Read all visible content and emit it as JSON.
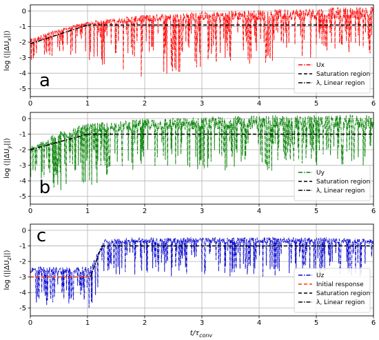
{
  "figure": {
    "xlabel": "t/τ",
    "xlabel_sub": "conv"
  },
  "chart_data": [
    {
      "type": "line",
      "panel_letter": "a",
      "ylabel": "log (||ΔU",
      "ylabel_sub": "x",
      "ylabel_end": "||)",
      "xlim": [
        0,
        6
      ],
      "ylim": [
        -5.5,
        0.4
      ],
      "xticks": [
        "0",
        "1",
        "2",
        "3",
        "4",
        "5",
        "6"
      ],
      "yticks": [
        "0",
        "-1",
        "-2",
        "-3",
        "-4",
        "-5"
      ],
      "grid": true,
      "legend_position": "lower right",
      "series": [
        {
          "name": "Ux",
          "color": "#ff0000",
          "style": "dash-dot",
          "envelope": {
            "x": [
              0,
              0.5,
              1,
              2,
              3,
              4,
              5,
              6
            ],
            "upper": [
              -1.8,
              -1.2,
              -0.7,
              -0.3,
              -0.1,
              0.0,
              0.1,
              0.2
            ],
            "typical": [
              -2.4,
              -1.5,
              -1.0,
              -0.9,
              -0.9,
              -0.9,
              -0.9,
              -0.9
            ],
            "deepest": [
              -3.3,
              -3.0,
              -3.2,
              -4.5,
              -3.6,
              -3.4,
              -3.0,
              -2.9
            ]
          }
        },
        {
          "name": "Saturation region",
          "color": "#000000",
          "style": "dashed",
          "x": [
            1,
            6
          ],
          "y": [
            -0.9,
            -0.9
          ]
        },
        {
          "name": "λ, Linear region",
          "color": "#000000",
          "style": "dash-dot",
          "x": [
            0,
            1
          ],
          "y": [
            -2.1,
            -0.9
          ]
        }
      ]
    },
    {
      "type": "line",
      "panel_letter": "b",
      "ylabel": "log (||ΔU",
      "ylabel_sub": "y",
      "ylabel_end": "||)",
      "xlim": [
        0,
        6
      ],
      "ylim": [
        -5.5,
        0.4
      ],
      "xticks": [
        "0",
        "1",
        "2",
        "3",
        "4",
        "5",
        "6"
      ],
      "yticks": [
        "0",
        "-1",
        "-2",
        "-3",
        "-4",
        "-5"
      ],
      "grid": true,
      "legend_position": "lower right",
      "series": [
        {
          "name": "Uy",
          "color": "#008000",
          "style": "dash-dot",
          "envelope": {
            "x": [
              0,
              0.5,
              1,
              2,
              3,
              4,
              5,
              6
            ],
            "upper": [
              -1.9,
              -0.9,
              -0.4,
              -0.1,
              0.0,
              0.1,
              0.1,
              0.1
            ],
            "typical": [
              -2.5,
              -1.8,
              -1.2,
              -1.1,
              -1.1,
              -1.1,
              -1.1,
              -1.1
            ],
            "deepest": [
              -3.8,
              -4.7,
              -4.3,
              -3.6,
              -3.4,
              -3.4,
              -3.2,
              -3.0
            ]
          }
        },
        {
          "name": "Saturation region",
          "color": "#000000",
          "style": "dashed",
          "x": [
            1,
            6
          ],
          "y": [
            -1.0,
            -1.0
          ]
        },
        {
          "name": "λ, Linear region",
          "color": "#000000",
          "style": "dash-dot",
          "x": [
            0,
            1
          ],
          "y": [
            -2.0,
            -1.0
          ]
        }
      ]
    },
    {
      "type": "line",
      "panel_letter": "c",
      "ylabel": "log (||ΔU",
      "ylabel_sub": "z",
      "ylabel_end": "||)",
      "xlim": [
        0,
        6
      ],
      "ylim": [
        -5.5,
        0.4
      ],
      "xticks": [
        "0",
        "1",
        "2",
        "3",
        "4",
        "5",
        "6"
      ],
      "yticks": [
        "0",
        "-1",
        "-2",
        "-3",
        "-4",
        "-5"
      ],
      "grid": true,
      "legend_position": "lower right",
      "series": [
        {
          "name": "Uz",
          "color": "#0000cc",
          "style": "dash-dot",
          "envelope": {
            "x": [
              0,
              1.05,
              1.3,
              2,
              3,
              4,
              5,
              6
            ],
            "upper": [
              -2.4,
              -2.4,
              -0.6,
              -0.5,
              -0.5,
              -0.5,
              -0.5,
              -0.6
            ],
            "typical": [
              -3.0,
              -3.0,
              -1.0,
              -1.0,
              -1.0,
              -1.0,
              -1.0,
              -1.0
            ],
            "deepest": [
              -4.8,
              -5.0,
              -2.9,
              -3.0,
              -2.9,
              -3.0,
              -2.8,
              -3.0
            ]
          }
        },
        {
          "name": "Initial response",
          "color": "#ff3300",
          "style": "dashed",
          "x": [
            0,
            1.05
          ],
          "y": [
            -3.0,
            -3.0
          ]
        },
        {
          "name": "Saturation region",
          "color": "#000000",
          "style": "dashed",
          "x": [
            1.25,
            6
          ],
          "y": [
            -1.0,
            -1.0
          ]
        },
        {
          "name": "λ, Linear region",
          "color": "#000000",
          "style": "dash-dot",
          "x": [
            1.05,
            1.25
          ],
          "y": [
            -3.0,
            -1.0
          ]
        }
      ]
    }
  ]
}
